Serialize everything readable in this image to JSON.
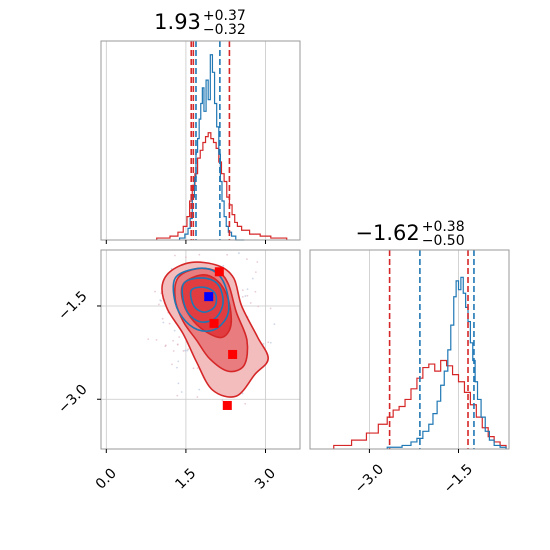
{
  "colors": {
    "blue": "#1f77b4",
    "red": "#d62728",
    "grid": "#c8c8c8",
    "frame": "#999999",
    "marker_blue": "#0000ff",
    "marker_red": "#ff0000"
  },
  "chart_data": [
    {
      "type": "histogram",
      "panel": "top-left",
      "title": {
        "main": "1.93",
        "sup": "+0.37",
        "sub": "−0.32"
      },
      "xlim": [
        -0.1,
        3.65
      ],
      "grid_x": [
        0.0,
        1.5,
        3.0
      ],
      "series": [
        {
          "color": "#1f77b4",
          "quantile_lines": [
            1.69,
            2.14
          ]
        },
        {
          "color": "#d62728",
          "quantile_lines": [
            1.6,
            1.64,
            2.32
          ]
        }
      ],
      "hist_blue": {
        "edges": [
          1.38,
          1.48,
          1.54,
          1.58,
          1.62,
          1.66,
          1.69,
          1.72,
          1.75,
          1.78,
          1.81,
          1.84,
          1.88,
          1.92,
          1.96,
          2.0,
          2.04,
          2.08,
          2.12,
          2.15,
          2.18,
          2.22,
          2.26,
          2.3,
          2.36,
          2.44,
          2.6
        ],
        "counts": [
          0.01,
          0.03,
          0.06,
          0.11,
          0.22,
          0.32,
          0.45,
          0.52,
          0.62,
          0.7,
          0.78,
          0.66,
          0.82,
          0.72,
          0.95,
          0.86,
          0.7,
          0.58,
          0.44,
          0.3,
          0.2,
          0.12,
          0.07,
          0.04,
          0.02,
          0.0
        ]
      },
      "hist_red": {
        "edges": [
          0.95,
          1.2,
          1.35,
          1.45,
          1.52,
          1.57,
          1.62,
          1.67,
          1.72,
          1.77,
          1.82,
          1.87,
          1.92,
          1.97,
          2.02,
          2.07,
          2.12,
          2.17,
          2.22,
          2.27,
          2.32,
          2.37,
          2.42,
          2.47,
          2.55,
          2.7,
          2.9,
          3.1,
          3.4
        ],
        "counts": [
          0.01,
          0.02,
          0.04,
          0.07,
          0.12,
          0.2,
          0.28,
          0.34,
          0.42,
          0.46,
          0.5,
          0.53,
          0.55,
          0.52,
          0.5,
          0.47,
          0.4,
          0.34,
          0.3,
          0.22,
          0.18,
          0.13,
          0.09,
          0.07,
          0.05,
          0.03,
          0.02,
          0.01
        ]
      }
    },
    {
      "type": "histogram",
      "panel": "bottom-right",
      "title": {
        "main": "−1.62",
        "sup": "+0.38",
        "sub": "−0.50"
      },
      "xlim": [
        -4.0,
        -0.65
      ],
      "grid_x": [
        -3.0,
        -1.5
      ],
      "tick_labels": [
        "−3.0",
        "−1.5"
      ],
      "series": [
        {
          "color": "#1f77b4",
          "quantile_lines": [
            -2.15,
            -1.24
          ]
        },
        {
          "color": "#d62728",
          "quantile_lines": [
            -2.66,
            -1.34
          ]
        }
      ],
      "hist_blue": {
        "edges": [
          -2.7,
          -2.45,
          -2.3,
          -2.2,
          -2.1,
          -2.0,
          -1.93,
          -1.86,
          -1.8,
          -1.74,
          -1.68,
          -1.63,
          -1.58,
          -1.54,
          -1.5,
          -1.46,
          -1.42,
          -1.38,
          -1.34,
          -1.3,
          -1.26,
          -1.22,
          -1.18,
          -1.12,
          -1.05,
          -0.98,
          -0.9,
          -0.8,
          -0.7
        ],
        "counts": [
          0.01,
          0.02,
          0.04,
          0.06,
          0.1,
          0.14,
          0.2,
          0.27,
          0.36,
          0.44,
          0.56,
          0.7,
          0.86,
          0.95,
          0.9,
          0.97,
          0.88,
          0.8,
          0.72,
          0.6,
          0.5,
          0.38,
          0.28,
          0.18,
          0.1,
          0.05,
          0.02,
          0.01
        ]
      },
      "hist_red": {
        "edges": [
          -3.6,
          -3.3,
          -3.05,
          -2.85,
          -2.7,
          -2.6,
          -2.5,
          -2.4,
          -2.3,
          -2.2,
          -2.1,
          -2.0,
          -1.9,
          -1.8,
          -1.7,
          -1.6,
          -1.5,
          -1.4,
          -1.3,
          -1.2,
          -1.1,
          -1.0,
          -0.9,
          -0.8,
          -0.7
        ],
        "counts": [
          0.02,
          0.05,
          0.09,
          0.14,
          0.18,
          0.22,
          0.24,
          0.28,
          0.34,
          0.4,
          0.46,
          0.48,
          0.44,
          0.5,
          0.47,
          0.42,
          0.38,
          0.32,
          0.25,
          0.18,
          0.12,
          0.07,
          0.04,
          0.02
        ]
      }
    },
    {
      "type": "contour",
      "panel": "bottom-left",
      "xlim": [
        -0.1,
        3.65
      ],
      "ylim": [
        -3.8,
        -0.6
      ],
      "grid_x": [
        0.0,
        1.5,
        3.0
      ],
      "grid_y": [
        -1.5,
        -3.0
      ],
      "x_tick_labels": [
        "0.0",
        "1.5",
        "3.0"
      ],
      "y_tick_labels": [
        "−1.5",
        "−3.0"
      ],
      "red_contours": [
        {
          "level": 1,
          "points": [
            [
              1.2,
              -0.95
            ],
            [
              1.6,
              -0.8
            ],
            [
              2.1,
              -0.85
            ],
            [
              2.4,
              -1.05
            ],
            [
              2.55,
              -1.5
            ],
            [
              2.85,
              -2.0
            ],
            [
              3.05,
              -2.35
            ],
            [
              2.8,
              -2.6
            ],
            [
              2.45,
              -2.95
            ],
            [
              2.0,
              -2.85
            ],
            [
              1.7,
              -2.4
            ],
            [
              1.45,
              -1.95
            ],
            [
              1.15,
              -1.55
            ],
            [
              1.05,
              -1.2
            ]
          ]
        },
        {
          "level": 2,
          "points": [
            [
              1.35,
              -1.05
            ],
            [
              1.7,
              -0.9
            ],
            [
              2.1,
              -0.95
            ],
            [
              2.3,
              -1.15
            ],
            [
              2.45,
              -1.6
            ],
            [
              2.65,
              -2.05
            ],
            [
              2.6,
              -2.45
            ],
            [
              2.3,
              -2.55
            ],
            [
              1.95,
              -2.35
            ],
            [
              1.7,
              -2.05
            ],
            [
              1.45,
              -1.75
            ],
            [
              1.3,
              -1.4
            ]
          ]
        },
        {
          "level": 3,
          "points": [
            [
              1.45,
              -1.15
            ],
            [
              1.8,
              -1.0
            ],
            [
              2.1,
              -1.1
            ],
            [
              2.3,
              -1.4
            ],
            [
              2.35,
              -1.8
            ],
            [
              2.2,
              -2.0
            ],
            [
              1.95,
              -1.95
            ],
            [
              1.65,
              -1.75
            ],
            [
              1.45,
              -1.45
            ]
          ]
        }
      ],
      "blue_contours": [
        {
          "level": 1,
          "points": [
            [
              1.3,
              -1.05
            ],
            [
              1.7,
              -0.9
            ],
            [
              2.05,
              -0.95
            ],
            [
              2.25,
              -1.2
            ],
            [
              2.3,
              -1.6
            ],
            [
              2.1,
              -1.85
            ],
            [
              1.8,
              -1.9
            ],
            [
              1.5,
              -1.75
            ],
            [
              1.3,
              -1.45
            ]
          ]
        },
        {
          "level": 2,
          "points": [
            [
              1.45,
              -1.15
            ],
            [
              1.8,
              -1.05
            ],
            [
              2.1,
              -1.15
            ],
            [
              2.2,
              -1.45
            ],
            [
              2.05,
              -1.7
            ],
            [
              1.75,
              -1.75
            ],
            [
              1.5,
              -1.55
            ]
          ]
        },
        {
          "level": 3,
          "points": [
            [
              1.6,
              -1.25
            ],
            [
              1.85,
              -1.2
            ],
            [
              2.05,
              -1.3
            ],
            [
              2.05,
              -1.5
            ],
            [
              1.85,
              -1.6
            ],
            [
              1.65,
              -1.5
            ]
          ]
        }
      ],
      "markers": [
        {
          "color": "#0000ff",
          "x": 1.93,
          "y": -1.35
        },
        {
          "color": "#ff0000",
          "x": 2.13,
          "y": -0.95
        },
        {
          "color": "#ff0000",
          "x": 2.03,
          "y": -1.78
        },
        {
          "color": "#ff0000",
          "x": 2.38,
          "y": -2.28
        },
        {
          "color": "#ff0000",
          "x": 2.28,
          "y": -3.1
        }
      ]
    }
  ]
}
